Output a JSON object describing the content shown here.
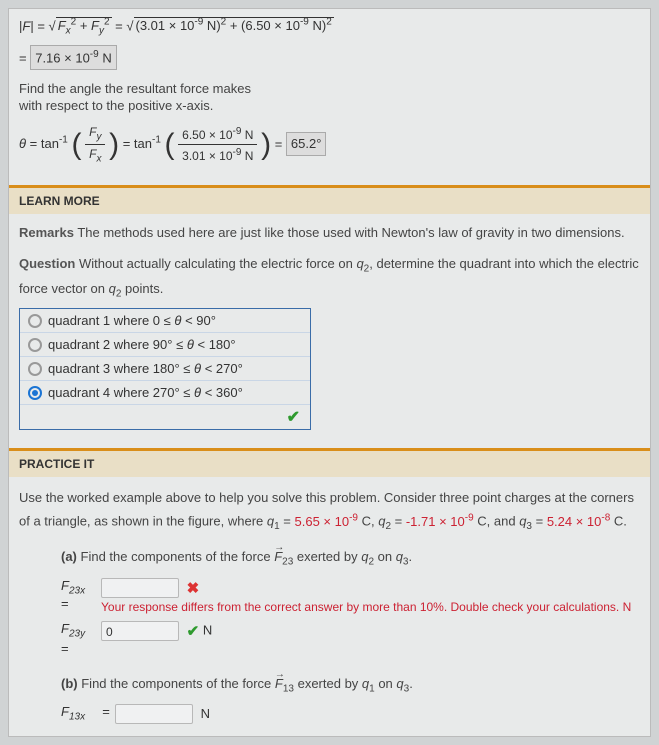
{
  "magnitude": {
    "lhs": "|F| = ",
    "expr_prefix": "F",
    "full_line_html": "√<span class='sqrt'><i>F<sub>x</sub></i><sup>2</sup> + <i>F<sub>y</sub></i><sup>2</sup></span> = √<span class='sqrt'>(3.01 × 10<sup>-9</sup> N)<sup>2</sup> + (6.50 × 10<sup>-9</sup> N)<sup>2</sup></span>",
    "result_prefix": "= ",
    "result_value_html": "7.16 × 10<sup>-9</sup> N"
  },
  "angle_intro": {
    "line1": "Find the angle the resultant force makes",
    "line2": "with respect to the positive x-axis."
  },
  "angle": {
    "theta": "θ = tan",
    "sup": "-1",
    "frac1_num_html": "<i>F<sub>y</sub></i>",
    "frac1_den_html": "<i>F<sub>x</sub></i>",
    "eq": " = tan",
    "frac2_num_html": "6.50 × 10<sup>-9</sup> N",
    "frac2_den_html": "3.01 × 10<sup>-9</sup> N",
    "eq2": " = ",
    "result": "65.2°"
  },
  "sections": {
    "learn_more": "LEARN MORE",
    "practice_it": "PRACTICE IT"
  },
  "remarks": {
    "label": "Remarks",
    "text": "  The methods used here are just like those used with Newton's law of gravity in two dimensions."
  },
  "question": {
    "label": "Question",
    "text_html": "  Without actually calculating the electric force on <i>q</i><sub>2</sub>, determine the quadrant into which the electric force vector on <i>q</i><sub>2</sub> points.",
    "choices": [
      {
        "label_html": "quadrant 1 where 0 ≤ <i>θ</i> < 90°",
        "selected": false
      },
      {
        "label_html": "quadrant 2 where 90° ≤ <i>θ</i> < 180°",
        "selected": false
      },
      {
        "label_html": "quadrant 3 where 180° ≤ <i>θ</i> < 270°",
        "selected": false
      },
      {
        "label_html": "quadrant 4 where 270° ≤ <i>θ</i> < 360°",
        "selected": true
      }
    ],
    "correct_mark": "✔"
  },
  "practice": {
    "intro_html": "Use the worked example above to help you solve this problem. Consider three point charges at the corners of a triangle, as shown in the figure, where <i>q</i><sub>1</sub> = <span style='color:#c23'>5.65 × 10<sup>-9</sup></span> C, <i>q</i><sub>2</sub> = <span style='color:#c23'>-1.71 × 10<sup>-9</sup></span> C, and <i>q</i><sub>3</sub> = <span style='color:#c23'>5.24 × 10<sup>-8</sup></span> C.",
    "part_a": {
      "label": "(a)",
      "text_html": "Find the components of the force <span class='vec'>F</span><sub>23</sub> exerted by <i>q</i><sub>2</sub> on <i>q</i><sub>3</sub>.",
      "row1": {
        "var_html": "<i>F</i><sub>23<i>x</i></sub>",
        "value": "",
        "mark": "cross"
      },
      "feedback": "Your response differs from the correct answer by more than 10%. Double check your calculations. N",
      "row2": {
        "var_html": "<i>F</i><sub>23<i>y</i></sub>",
        "value": "0",
        "mark": "check",
        "unit": "N"
      }
    },
    "part_b": {
      "label": "(b)",
      "text_html": "Find the components of the force <span class='vec'>F</span><sub>13</sub> exerted by <i>q</i><sub>1</sub> on <i>q</i><sub>3</sub>.",
      "row1": {
        "var_html": "<i>F</i><sub>13<i>x</i></sub>",
        "value": "",
        "unit": "N"
      }
    }
  }
}
